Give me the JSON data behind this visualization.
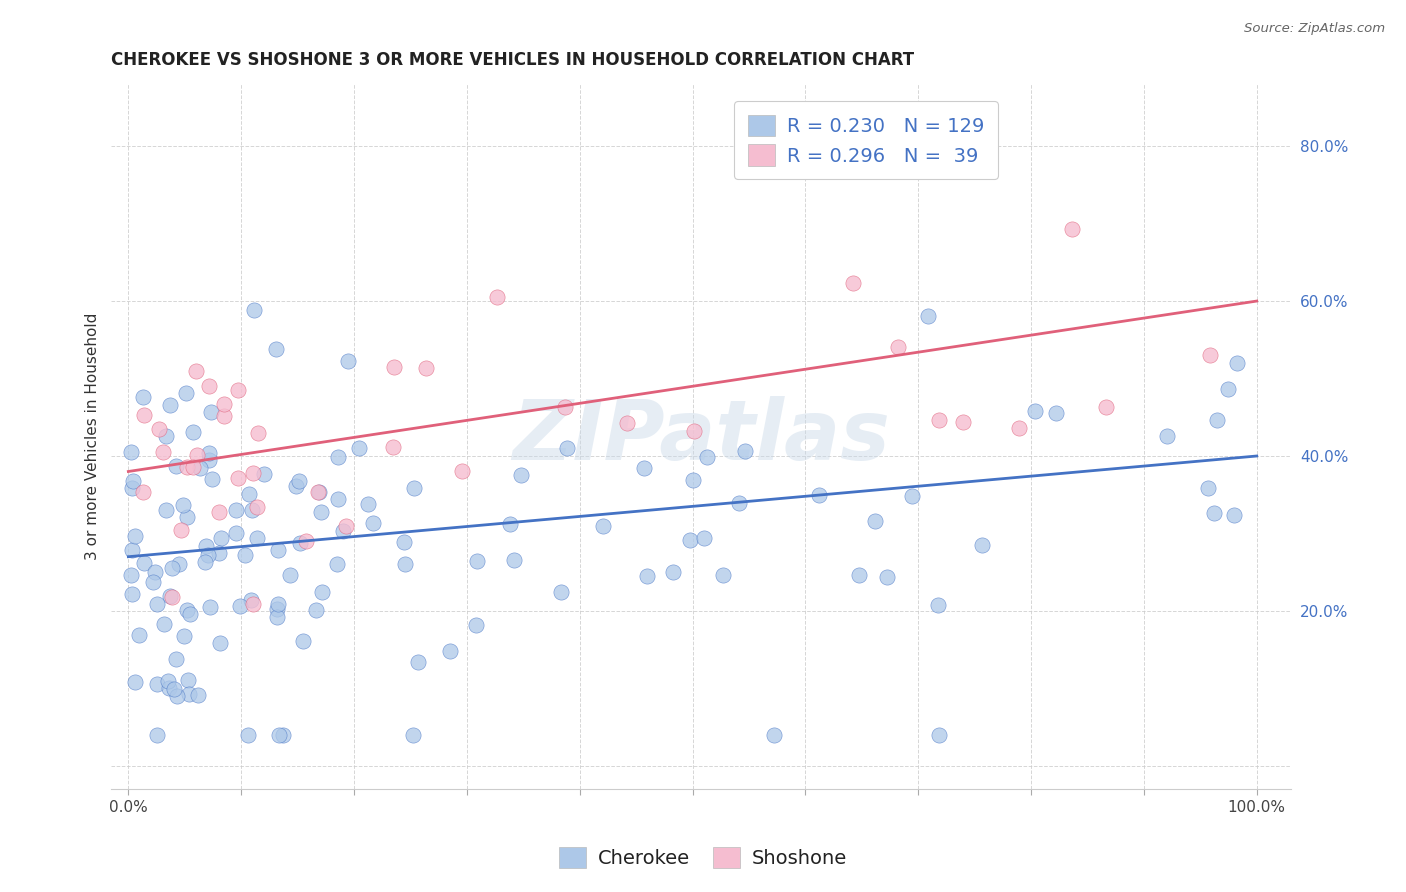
{
  "title": "CHEROKEE VS SHOSHONE 3 OR MORE VEHICLES IN HOUSEHOLD CORRELATION CHART",
  "source": "Source: ZipAtlas.com",
  "ylabel_label": "3 or more Vehicles in Household",
  "cherokee_R": 0.23,
  "cherokee_N": 129,
  "shoshone_R": 0.296,
  "shoshone_N": 39,
  "cherokee_color": "#adc8e8",
  "cherokee_line_color": "#4472c4",
  "shoshone_color": "#f5bdd0",
  "shoshone_line_color": "#e0607a",
  "watermark": "ZIPatlas",
  "background_color": "#ffffff",
  "cherokee_intercept": 0.27,
  "cherokee_slope": 0.13,
  "shoshone_intercept": 0.38,
  "shoshone_slope": 0.22,
  "title_fontsize": 12,
  "tick_label_fontsize": 11,
  "legend_fontsize": 14
}
